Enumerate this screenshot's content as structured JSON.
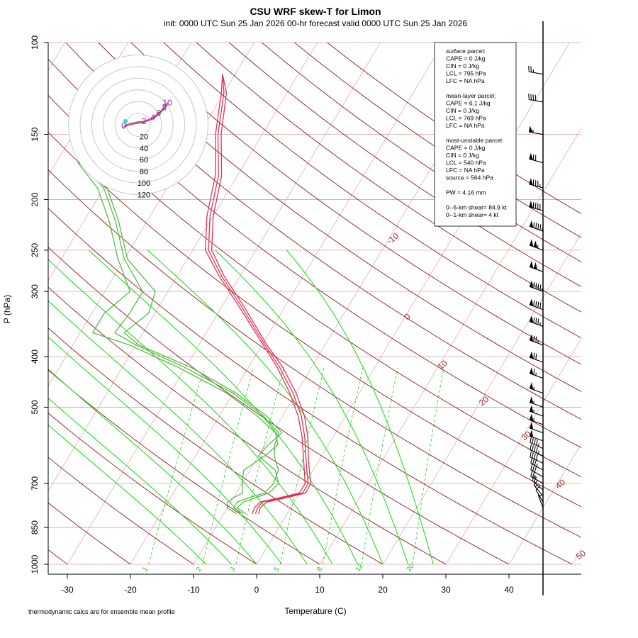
{
  "title": "CSU WRF skew-T for Limon",
  "subtitle": "init: 0000 UTC Sun 25 Jan 2026     00-hr forecast valid 0000 UTC Sun 25 Jan 2026",
  "footnote": "thermodynamic calcs are for ensemble mean profile",
  "colors": {
    "isotherm": "#a52a2a",
    "isobar": "#d9a3a3",
    "dry_adiabat": "#8b1a1a",
    "moist_adiabat": "#22dd22",
    "mixing_ratio": "#22cc22",
    "temperature": "#dd3355",
    "dewpoint": "#55bb44",
    "hodograph_ring": "#bbbbbb"
  },
  "chart_data": {
    "type": "line",
    "xlabel": "Temperature (C)",
    "ylabel": "P (hPa)",
    "xlim": [
      -33,
      50
    ],
    "ylim": [
      1000,
      100
    ],
    "y_scale": "log",
    "grid": true,
    "x_ticks": [
      -30,
      -20,
      -10,
      0,
      10,
      20,
      30,
      40
    ],
    "y_ticks": [
      100,
      150,
      200,
      250,
      300,
      400,
      500,
      700,
      850,
      1000
    ],
    "isotherm_labels": [
      "-10",
      "0",
      "10",
      "20",
      "30",
      "40",
      "50"
    ],
    "mixing_ratio_labels": [
      "1",
      "2",
      "3",
      "5",
      "8",
      "12",
      "20"
    ],
    "series": [
      {
        "name": "",
        "kind": "temperature",
        "members": [
          {
            "pressure": [
              800,
              780,
              760,
              745,
              730,
              700,
              660,
              620,
              570,
              520,
              470,
              420,
              380,
              320,
              280,
              250,
              215,
              180,
              150,
              125,
              115
            ],
            "temp": [
              -5.0,
              -5.2,
              -5.0,
              -2.0,
              0.5,
              0.5,
              -1.0,
              -2.5,
              -4.5,
              -7.0,
              -10.5,
              -15.0,
              -19.5,
              -27.0,
              -33.0,
              -37.5,
              -40.5,
              -43.0,
              -47.0,
              -50.0,
              -52.0
            ]
          },
          {
            "pressure": [
              800,
              780,
              760,
              745,
              730,
              700,
              660,
              620,
              570,
              520,
              470,
              420,
              380,
              320,
              280,
              250,
              215,
              180,
              150,
              125,
              115
            ],
            "temp": [
              -4.5,
              -4.8,
              -4.3,
              -1.5,
              1.0,
              0.9,
              -0.6,
              -2.1,
              -4.0,
              -6.5,
              -10.0,
              -14.5,
              -19.2,
              -26.6,
              -32.6,
              -37.0,
              -40.0,
              -42.5,
              -46.5,
              -49.6,
              -52.0
            ]
          },
          {
            "pressure": [
              800,
              780,
              760,
              745,
              730,
              700,
              660,
              620,
              570,
              520,
              470,
              420,
              380,
              320,
              280,
              250,
              215,
              180,
              150,
              125,
              115
            ],
            "temp": [
              -5.5,
              -5.7,
              -5.4,
              -2.6,
              0.0,
              0.0,
              -1.4,
              -2.9,
              -4.9,
              -7.5,
              -11.0,
              -15.4,
              -19.8,
              -27.4,
              -33.4,
              -38.0,
              -41.0,
              -43.5,
              -47.4,
              -50.4,
              -52.0
            ]
          }
        ]
      },
      {
        "name": "",
        "kind": "dewpoint",
        "members": [
          {
            "pressure": [
              800,
              780,
              760,
              745,
              730,
              700,
              660,
              620,
              590,
              560,
              520,
              470,
              420,
              380,
              360,
              330,
              300,
              260,
              220,
              190,
              170
            ],
            "temp": [
              -7.0,
              -9.0,
              -9.0,
              -7.5,
              -5.5,
              -5.0,
              -5.5,
              -7.5,
              -8.5,
              -9.0,
              -13.0,
              -20.0,
              -30.0,
              -40.0,
              -44.5,
              -44.0,
              -44.0,
              -50.0,
              -55.0,
              -60.0,
              -66.0
            ]
          },
          {
            "pressure": [
              800,
              780,
              760,
              745,
              730,
              700,
              660,
              620,
              590,
              560,
              520,
              470,
              420,
              380,
              360,
              330,
              300,
              260,
              220,
              190,
              170
            ],
            "temp": [
              -8.0,
              -10.0,
              -10.5,
              -10.0,
              -9.0,
              -10.0,
              -11.0,
              -9.0,
              -8.0,
              -9.5,
              -14.0,
              -21.0,
              -31.0,
              -41.0,
              -48.0,
              -48.0,
              -46.0,
              -51.0,
              -56.0,
              -61.0,
              -66.5
            ]
          },
          {
            "pressure": [
              800,
              780,
              760,
              745,
              730,
              700,
              660,
              620,
              590,
              560,
              520,
              470,
              420,
              380,
              360,
              330,
              300,
              260,
              220,
              190,
              170
            ],
            "temp": [
              -6.5,
              -8.5,
              -8.0,
              -6.5,
              -4.8,
              -4.2,
              -6.0,
              -10.0,
              -9.5,
              -8.5,
              -12.5,
              -19.5,
              -29.0,
              -39.5,
              -43.0,
              -41.0,
              -42.0,
              -49.5,
              -54.5,
              -59.5,
              -65.5
            ]
          }
        ]
      }
    ],
    "wind_barbs": {
      "pressure": [
        115,
        130,
        150,
        170,
        190,
        210,
        230,
        250,
        275,
        300,
        325,
        350,
        380,
        410,
        440,
        470,
        500,
        520,
        540,
        560,
        580,
        600,
        620,
        640,
        660,
        680,
        700,
        720,
        740,
        760,
        780
      ],
      "direction": [
        280,
        280,
        280,
        285,
        285,
        285,
        290,
        290,
        290,
        290,
        290,
        290,
        290,
        290,
        290,
        290,
        290,
        290,
        290,
        290,
        290,
        295,
        295,
        295,
        300,
        300,
        300,
        310,
        320,
        330,
        340
      ],
      "speed_kt": [
        25,
        40,
        55,
        70,
        85,
        90,
        95,
        105,
        100,
        95,
        90,
        85,
        75,
        70,
        65,
        55,
        55,
        55,
        55,
        50,
        50,
        45,
        45,
        40,
        35,
        30,
        25,
        20,
        15,
        10,
        5
      ]
    },
    "hodograph": {
      "ring_labels": [
        "20",
        "40",
        "60",
        "80",
        "100",
        "120"
      ],
      "points": [
        {
          "u": -25,
          "v": -2,
          "label": "0"
        },
        {
          "u": -22,
          "v": -1,
          "label": ""
        },
        {
          "u": -15,
          "v": 2,
          "label": ""
        },
        {
          "u": 0,
          "v": 5,
          "label": ""
        },
        {
          "u": 10,
          "v": 6,
          "label": "2"
        },
        {
          "u": 25,
          "v": 12,
          "label": "4"
        },
        {
          "u": 35,
          "v": 20,
          "label": "6"
        },
        {
          "u": 45,
          "v": 30,
          "label": "8"
        },
        {
          "u": 50,
          "v": 38,
          "label": "10"
        }
      ]
    }
  },
  "info_box": {
    "lines": [
      "surface parcel:",
      "CAPE = 0 J/kg",
      "CIN = 0 J/kg",
      "LCL = 795 hPa",
      "LFC = NA hPa",
      "",
      "mean-layer parcel:",
      "CAPE = 6.1 J/kg",
      "CIN = 0 J/kg",
      "LCL = 769 hPa",
      "LFC = NA hPa",
      "",
      "most-unstable parcel:",
      "CAPE = 0 J/kg",
      "CIN = 0 J/kg",
      "LCL = 540 hPa",
      "LFC = NA hPa",
      "source = 564 hPa",
      "",
      "PW =  4.16 mm",
      "",
      "0--6-km shear= 84.9 kt",
      "0--1-km shear= 4 kt"
    ]
  }
}
